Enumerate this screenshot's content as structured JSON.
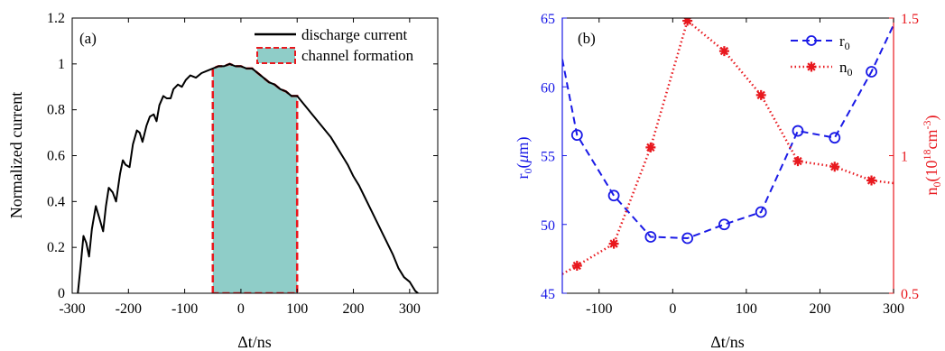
{
  "chart_data": [
    {
      "panel": "(a)",
      "type": "line",
      "xlabel": "Δt/ns",
      "ylabel": "Normalized current",
      "xlim": [
        -300,
        350
      ],
      "ylim": [
        0,
        1.2
      ],
      "xticks": [
        "-300",
        "-200",
        "-100",
        "0",
        "100",
        "200",
        "300"
      ],
      "xtick_values": [
        -300,
        -200,
        -100,
        0,
        100,
        200,
        300
      ],
      "yticks": [
        "0",
        "0.2",
        "0.4",
        "0.6",
        "0.8",
        "1",
        "1.2"
      ],
      "ytick_values": [
        0,
        0.2,
        0.4,
        0.6,
        0.8,
        1.0,
        1.2
      ],
      "legend": {
        "placement": "top-right",
        "entries": [
          "discharge current",
          "channel formation"
        ]
      },
      "series": [
        {
          "name": "discharge current",
          "color": "#000000",
          "x": [
            -290,
            -285,
            -280,
            -275,
            -270,
            -265,
            -258,
            -252,
            -245,
            -240,
            -235,
            -228,
            -222,
            -215,
            -210,
            -205,
            -198,
            -192,
            -185,
            -180,
            -175,
            -168,
            -162,
            -155,
            -150,
            -145,
            -138,
            -132,
            -125,
            -120,
            -112,
            -105,
            -98,
            -90,
            -80,
            -70,
            -60,
            -50,
            -40,
            -30,
            -20,
            -10,
            0,
            10,
            20,
            30,
            40,
            50,
            60,
            70,
            80,
            90,
            100,
            110,
            120,
            130,
            140,
            150,
            160,
            170,
            180,
            190,
            200,
            210,
            220,
            230,
            240,
            250,
            260,
            270,
            280,
            290,
            300,
            305,
            310,
            315
          ],
          "y": [
            0.0,
            0.12,
            0.25,
            0.22,
            0.16,
            0.28,
            0.38,
            0.33,
            0.27,
            0.38,
            0.46,
            0.44,
            0.4,
            0.52,
            0.58,
            0.56,
            0.55,
            0.65,
            0.71,
            0.7,
            0.66,
            0.73,
            0.77,
            0.78,
            0.75,
            0.82,
            0.86,
            0.85,
            0.85,
            0.89,
            0.91,
            0.9,
            0.93,
            0.95,
            0.94,
            0.96,
            0.97,
            0.98,
            0.99,
            0.99,
            1.0,
            0.99,
            0.99,
            0.98,
            0.98,
            0.96,
            0.94,
            0.92,
            0.91,
            0.89,
            0.88,
            0.86,
            0.86,
            0.83,
            0.8,
            0.77,
            0.74,
            0.71,
            0.68,
            0.64,
            0.6,
            0.56,
            0.51,
            0.47,
            0.42,
            0.37,
            0.32,
            0.27,
            0.22,
            0.17,
            0.11,
            0.07,
            0.05,
            0.03,
            0.01,
            0.0
          ]
        }
      ],
      "shaded_region": {
        "name": "channel formation",
        "x_start": -50,
        "x_end": 100,
        "fill": "#8fcdc8",
        "edge": "#e8181e"
      }
    },
    {
      "panel": "(b)",
      "type": "line",
      "xlabel": "Δt/ns",
      "ylabel_left": "r0(μm)",
      "ylabel_right": "n0(10^18 cm^-3)",
      "xlim": [
        -150,
        300
      ],
      "ylim_left": [
        45,
        65
      ],
      "ylim_right": [
        0.5,
        1.5
      ],
      "xticks": [
        "-100",
        "0",
        "100",
        "200",
        "300"
      ],
      "xtick_values": [
        -100,
        0,
        100,
        200,
        300
      ],
      "yticks_left": [
        "45",
        "50",
        "55",
        "60",
        "65"
      ],
      "ytick_values_left": [
        45,
        50,
        55,
        60,
        65
      ],
      "yticks_right": [
        "0.5",
        "1",
        "1.5"
      ],
      "ytick_values_right": [
        0.5,
        1.0,
        1.5
      ],
      "legend": {
        "placement": "top-right",
        "entries": [
          "r0",
          "n0"
        ]
      },
      "series": [
        {
          "name": "r0",
          "axis": "left",
          "color": "#1a1ae6",
          "marker": "circle",
          "line": "dashed",
          "x": [
            -130,
            -80,
            -30,
            20,
            70,
            120,
            170,
            220,
            270
          ],
          "y": [
            56.5,
            52.1,
            49.1,
            49.0,
            50.0,
            50.9,
            56.8,
            56.3,
            61.1
          ],
          "line_x": [
            -150,
            -130,
            -80,
            -30,
            20,
            70,
            120,
            170,
            220,
            270,
            300
          ],
          "line_y": [
            62.0,
            56.5,
            52.1,
            49.1,
            49.0,
            50.0,
            50.9,
            56.8,
            56.3,
            61.1,
            64.5
          ]
        },
        {
          "name": "n0",
          "axis": "right",
          "color": "#e8181e",
          "marker": "star",
          "line": "dotted",
          "x": [
            -130,
            -80,
            -30,
            20,
            70,
            120,
            170,
            220,
            270
          ],
          "y": [
            0.6,
            0.68,
            1.03,
            1.49,
            1.38,
            1.22,
            0.98,
            0.96,
            0.91
          ],
          "line_x": [
            -150,
            -130,
            -80,
            -30,
            20,
            70,
            120,
            170,
            220,
            270,
            300
          ],
          "line_y": [
            0.57,
            0.6,
            0.68,
            1.03,
            1.49,
            1.38,
            1.22,
            0.98,
            0.96,
            0.91,
            0.9
          ]
        }
      ]
    }
  ]
}
